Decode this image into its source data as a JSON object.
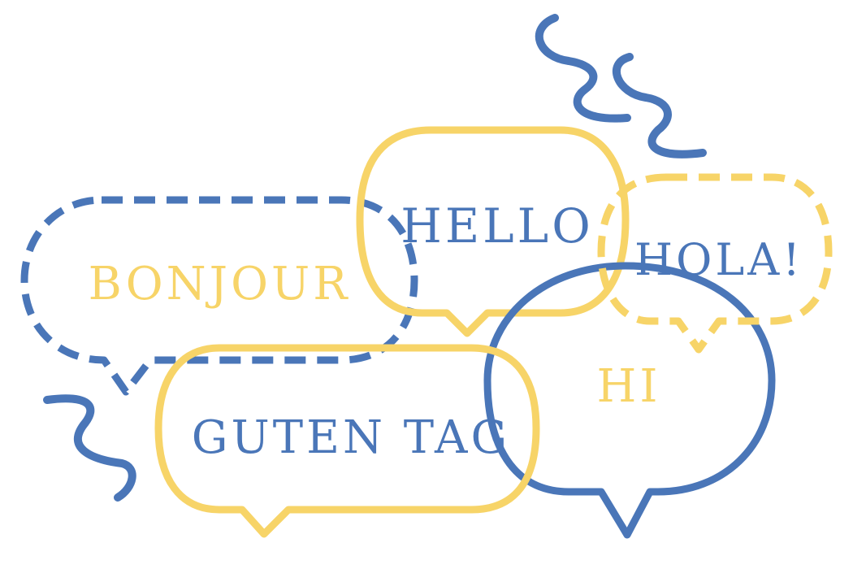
{
  "colors": {
    "blue": "#4A76B8",
    "yellow": "#F7D468",
    "background": "#FFFFFF"
  },
  "greetings": {
    "bonjour": "BONJOUR",
    "hello": "HELLO",
    "hola": "HOLA!",
    "hi": "HI",
    "guten_tag": "GUTEN TAG"
  }
}
